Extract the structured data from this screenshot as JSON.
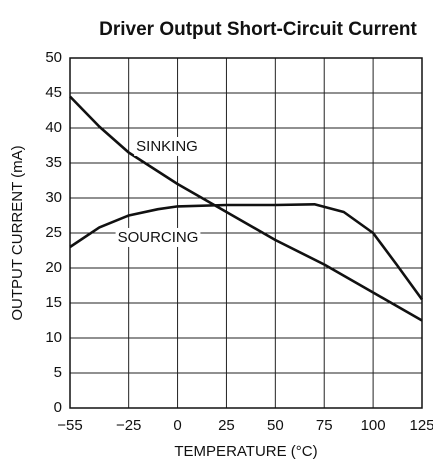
{
  "chart_data": {
    "type": "line",
    "title": "Driver Output Short-Circuit Current",
    "x_label": "TEMPERATURE (°C)",
    "y_label": "OUTPUT CURRENT (mA)",
    "series": [
      {
        "name": "SINKING",
        "color": "#111111",
        "x": [
          -55,
          -40,
          -25,
          0,
          25,
          50,
          75,
          100,
          125
        ],
        "values": [
          44.5,
          40.2,
          36.5,
          32,
          28,
          24,
          20.5,
          16.5,
          12.5
        ]
      },
      {
        "name": "SOURCING",
        "color": "#111111",
        "x": [
          -55,
          -40,
          -25,
          -10,
          0,
          25,
          50,
          70,
          85,
          100,
          112,
          125
        ],
        "values": [
          23,
          25.8,
          27.5,
          28.4,
          28.8,
          29,
          29,
          29.1,
          28,
          25,
          20.5,
          15.5
        ]
      }
    ],
    "xlim": [
      -55,
      125
    ],
    "ylim": [
      0,
      50
    ],
    "xticks": [
      {
        "value": -55,
        "label": "−55"
      },
      {
        "value": -25,
        "label": "−25"
      },
      0,
      25,
      50,
      75,
      100,
      125
    ],
    "yticks": [
      0,
      5,
      10,
      15,
      20,
      25,
      30,
      35,
      40,
      45,
      50
    ],
    "grid": true
  }
}
